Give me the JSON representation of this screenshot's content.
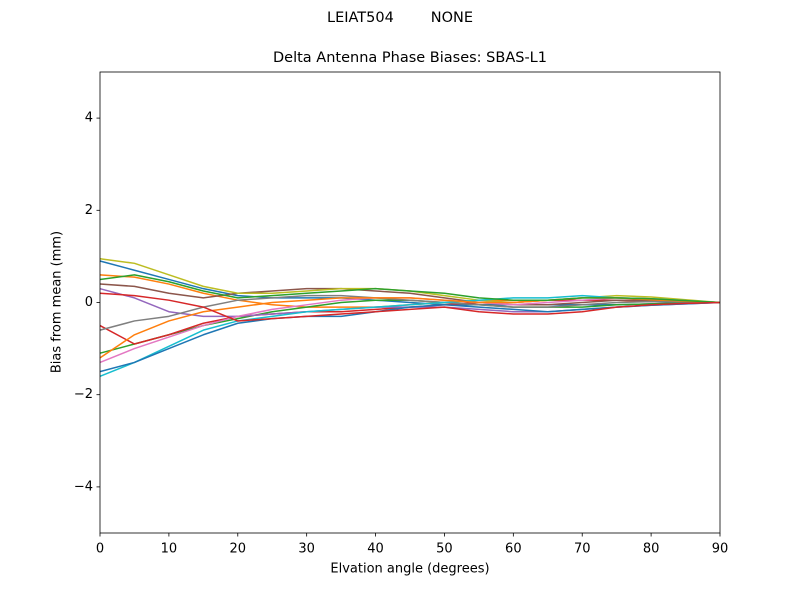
{
  "chart_data": {
    "type": "line",
    "suptitle": "LEIAT504        NONE",
    "title": "Delta Antenna Phase Biases: SBAS-L1",
    "xlabel": "Elvation angle (degrees)",
    "ylabel": "Bias from mean (mm)",
    "xlim": [
      0,
      90
    ],
    "xticks": [
      0,
      10,
      20,
      30,
      40,
      50,
      60,
      70,
      80,
      90
    ],
    "ylim": [
      -5,
      5
    ],
    "yticks": [
      {
        "value": -4,
        "label": "−4"
      },
      {
        "value": -2,
        "label": "−2"
      },
      0,
      2,
      4
    ],
    "grid": false,
    "x": [
      0,
      5,
      10,
      15,
      20,
      25,
      30,
      35,
      40,
      45,
      50,
      55,
      60,
      65,
      70,
      75,
      80,
      85,
      90
    ],
    "series": [
      {
        "color": "#1f77b4",
        "values": [
          0.9,
          0.7,
          0.5,
          0.3,
          0.15,
          0.1,
          0.1,
          0.1,
          0.05,
          0,
          -0.05,
          -0.05,
          -0.05,
          -0.05,
          -0.05,
          -0.05,
          -0.03,
          0,
          0
        ]
      },
      {
        "color": "#ff7f0e",
        "values": [
          0.6,
          0.55,
          0.4,
          0.2,
          0.05,
          -0.05,
          -0.1,
          -0.1,
          -0.1,
          -0.05,
          0,
          0.05,
          0.05,
          0.05,
          0.05,
          0.05,
          0.03,
          0.02,
          0
        ]
      },
      {
        "color": "#2ca02c",
        "values": [
          -1.1,
          -0.9,
          -0.7,
          -0.5,
          -0.35,
          -0.2,
          -0.1,
          0,
          0.05,
          0.05,
          0,
          -0.05,
          -0.1,
          -0.1,
          -0.1,
          -0.05,
          -0.03,
          -0.01,
          0
        ]
      },
      {
        "color": "#d62728",
        "values": [
          -0.5,
          -0.9,
          -0.7,
          -0.45,
          -0.3,
          -0.25,
          -0.2,
          -0.2,
          -0.15,
          -0.1,
          -0.05,
          0,
          0,
          0.05,
          0.05,
          0.05,
          0.03,
          0.02,
          0
        ]
      },
      {
        "color": "#9467bd",
        "values": [
          0.3,
          0.1,
          -0.2,
          -0.3,
          -0.3,
          -0.25,
          -0.2,
          -0.15,
          -0.1,
          -0.1,
          -0.1,
          -0.15,
          -0.2,
          -0.2,
          -0.15,
          -0.1,
          -0.06,
          -0.03,
          0
        ]
      },
      {
        "color": "#8c564b",
        "values": [
          0.4,
          0.35,
          0.2,
          0.1,
          0.2,
          0.25,
          0.3,
          0.3,
          0.25,
          0.2,
          0.1,
          0,
          -0.05,
          -0.05,
          0,
          0.05,
          0.05,
          0.03,
          0
        ]
      },
      {
        "color": "#e377c2",
        "values": [
          -1.3,
          -1.0,
          -0.75,
          -0.5,
          -0.3,
          -0.15,
          -0.05,
          0.05,
          0.1,
          0.1,
          0.05,
          0,
          -0.05,
          0,
          0.05,
          0.1,
          0.08,
          0.04,
          0
        ]
      },
      {
        "color": "#7f7f7f",
        "values": [
          -0.6,
          -0.4,
          -0.3,
          -0.1,
          0.05,
          0.1,
          0.15,
          0.15,
          0.1,
          0.05,
          0,
          -0.05,
          -0.1,
          -0.1,
          -0.05,
          0,
          0.02,
          0.01,
          0
        ]
      },
      {
        "color": "#bcbd22",
        "values": [
          0.95,
          0.85,
          0.6,
          0.35,
          0.2,
          0.2,
          0.25,
          0.3,
          0.3,
          0.25,
          0.15,
          0.05,
          0,
          0.05,
          0.1,
          0.15,
          0.12,
          0.06,
          0
        ]
      },
      {
        "color": "#17becf",
        "values": [
          -1.6,
          -1.3,
          -0.95,
          -0.6,
          -0.4,
          -0.3,
          -0.2,
          -0.15,
          -0.1,
          -0.05,
          0,
          0.05,
          0.1,
          0.1,
          0.15,
          0.1,
          0.08,
          0.04,
          0
        ]
      },
      {
        "color": "#1f77b4",
        "values": [
          -1.5,
          -1.3,
          -1.0,
          -0.7,
          -0.45,
          -0.35,
          -0.3,
          -0.3,
          -0.2,
          -0.1,
          -0.05,
          -0.1,
          -0.15,
          -0.2,
          -0.15,
          -0.1,
          -0.06,
          -0.03,
          0
        ]
      },
      {
        "color": "#ff7f0e",
        "values": [
          -1.2,
          -0.7,
          -0.4,
          -0.2,
          -0.1,
          0,
          0.05,
          0.1,
          0.1,
          0.1,
          0.05,
          0,
          0,
          0.05,
          0.1,
          0.1,
          0.06,
          0.03,
          0
        ]
      },
      {
        "color": "#2ca02c",
        "values": [
          0.5,
          0.6,
          0.45,
          0.25,
          0.1,
          0.15,
          0.2,
          0.25,
          0.3,
          0.25,
          0.2,
          0.1,
          0.05,
          0.05,
          0.1,
          0.1,
          0.08,
          0.04,
          0
        ]
      },
      {
        "color": "#d62728",
        "values": [
          0.2,
          0.15,
          0.05,
          -0.1,
          -0.4,
          -0.35,
          -0.3,
          -0.25,
          -0.2,
          -0.15,
          -0.1,
          -0.2,
          -0.25,
          -0.25,
          -0.2,
          -0.1,
          -0.05,
          -0.02,
          0
        ]
      }
    ]
  }
}
